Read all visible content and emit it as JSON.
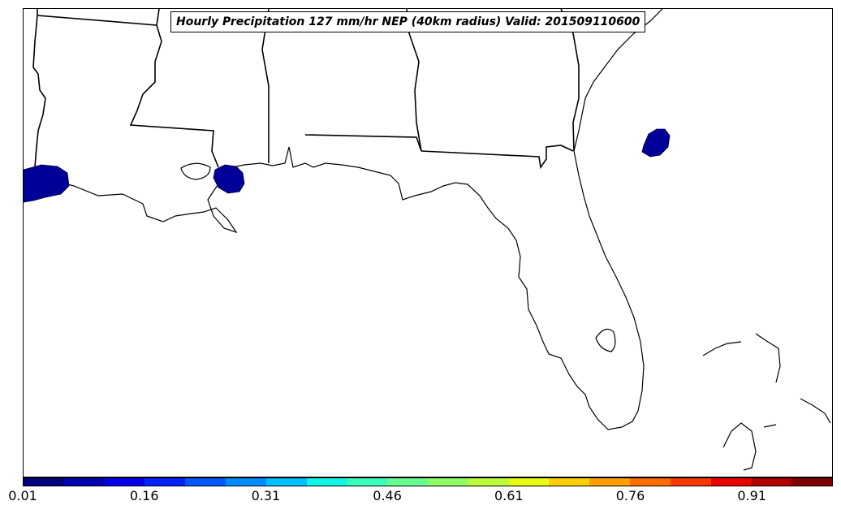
{
  "title": "Hourly Precipitation 127 mm/hr NEP (40km radius) Valid: 201509110600",
  "colorbar": {
    "colors": [
      "#00007f",
      "#0000b2",
      "#0000ef",
      "#0022ff",
      "#0058ff",
      "#008cff",
      "#00c0ff",
      "#0ff8e7",
      "#39ffbd",
      "#66ff90",
      "#90ff66",
      "#bdff39",
      "#e7ff0f",
      "#ffd000",
      "#ffa000",
      "#ff6c00",
      "#ff3800",
      "#ef0000",
      "#b20000",
      "#7f0000"
    ],
    "ticks": [
      "0.01",
      "0.16",
      "0.31",
      "0.46",
      "0.61",
      "0.76",
      "0.91"
    ]
  },
  "precip_color": "#000098"
}
